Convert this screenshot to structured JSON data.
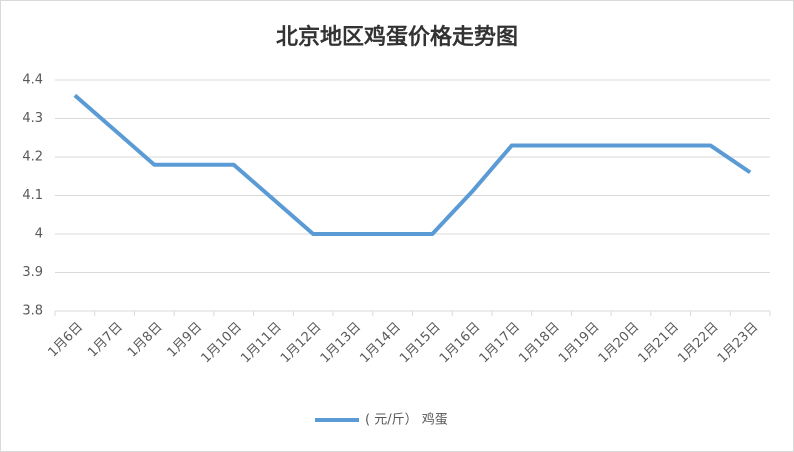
{
  "chart_data": {
    "type": "line",
    "title": "北京地区鸡蛋价格走势图",
    "categories": [
      "1月6日",
      "1月7日",
      "1月8日",
      "1月9日",
      "1月10日",
      "1月11日",
      "1月12日",
      "1月13日",
      "1月14日",
      "1月15日",
      "1月16日",
      "1月17日",
      "1月18日",
      "1月19日",
      "1月20日",
      "1月21日",
      "1月22日",
      "1月23日"
    ],
    "series": [
      {
        "name": "( 元/斤） 鸡蛋",
        "color": "#5b9bd5",
        "values": [
          4.36,
          4.27,
          4.18,
          4.18,
          4.18,
          4.09,
          4.0,
          4.0,
          4.0,
          4.0,
          4.11,
          4.23,
          4.23,
          4.23,
          4.23,
          4.23,
          4.23,
          4.16
        ]
      }
    ],
    "ylim": [
      3.8,
      4.4
    ],
    "yticks": [
      3.8,
      3.9,
      4,
      4.1,
      4.2,
      4.3,
      4.4
    ],
    "grid": true,
    "legend": "bottom"
  }
}
